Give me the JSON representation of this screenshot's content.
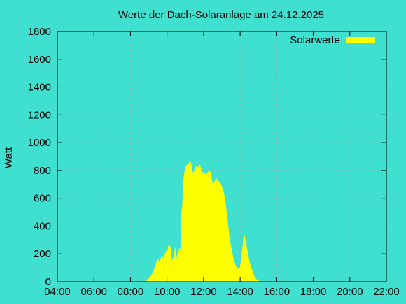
{
  "chart_data": {
    "type": "area",
    "title": "Werte der Dach-Solaranlage am 24.12.2025",
    "xlabel": "",
    "ylabel": "Watt",
    "x_unit": "time of day (hours)",
    "xlim": [
      4,
      22
    ],
    "ylim": [
      0,
      1800
    ],
    "x_ticks": [
      4,
      6,
      8,
      10,
      12,
      14,
      16,
      18,
      20,
      22
    ],
    "x_tick_labels": [
      "04:00",
      "06:00",
      "08:00",
      "10:00",
      "12:00",
      "14:00",
      "16:00",
      "18:00",
      "20:00",
      "22:00"
    ],
    "y_ticks": [
      0,
      200,
      400,
      600,
      800,
      1000,
      1200,
      1400,
      1600,
      1800
    ],
    "y_tick_labels": [
      "0",
      "200",
      "400",
      "600",
      "800",
      "1000",
      "1200",
      "1400",
      "1600",
      "1800"
    ],
    "grid": true,
    "legend_position": "top-right",
    "background_color": "#40e0d0",
    "series": [
      {
        "name": "Solarwerte",
        "color": "#ffff00",
        "points": [
          [
            8.85,
            0
          ],
          [
            8.95,
            15
          ],
          [
            9.1,
            35
          ],
          [
            9.2,
            60
          ],
          [
            9.3,
            90
          ],
          [
            9.4,
            130
          ],
          [
            9.5,
            160
          ],
          [
            9.6,
            140
          ],
          [
            9.7,
            180
          ],
          [
            9.8,
            170
          ],
          [
            9.9,
            200
          ],
          [
            9.95,
            220
          ],
          [
            10.0,
            190
          ],
          [
            10.1,
            270
          ],
          [
            10.2,
            240
          ],
          [
            10.25,
            150
          ],
          [
            10.35,
            170
          ],
          [
            10.45,
            240
          ],
          [
            10.5,
            150
          ],
          [
            10.6,
            210
          ],
          [
            10.7,
            240
          ],
          [
            10.75,
            200
          ],
          [
            10.8,
            500
          ],
          [
            10.85,
            560
          ],
          [
            10.9,
            730
          ],
          [
            11.0,
            820
          ],
          [
            11.1,
            840
          ],
          [
            11.2,
            850
          ],
          [
            11.3,
            860
          ],
          [
            11.4,
            780
          ],
          [
            11.5,
            800
          ],
          [
            11.6,
            830
          ],
          [
            11.7,
            820
          ],
          [
            11.8,
            840
          ],
          [
            11.9,
            780
          ],
          [
            12.0,
            790
          ],
          [
            12.1,
            770
          ],
          [
            12.2,
            780
          ],
          [
            12.3,
            800
          ],
          [
            12.4,
            780
          ],
          [
            12.5,
            690
          ],
          [
            12.6,
            720
          ],
          [
            12.7,
            740
          ],
          [
            12.8,
            720
          ],
          [
            12.9,
            710
          ],
          [
            13.0,
            680
          ],
          [
            13.1,
            640
          ],
          [
            13.2,
            560
          ],
          [
            13.3,
            450
          ],
          [
            13.4,
            330
          ],
          [
            13.5,
            250
          ],
          [
            13.6,
            180
          ],
          [
            13.7,
            130
          ],
          [
            13.8,
            100
          ],
          [
            13.9,
            90
          ],
          [
            14.0,
            100
          ],
          [
            14.1,
            200
          ],
          [
            14.2,
            320
          ],
          [
            14.25,
            330
          ],
          [
            14.3,
            280
          ],
          [
            14.4,
            220
          ],
          [
            14.5,
            140
          ],
          [
            14.6,
            100
          ],
          [
            14.7,
            60
          ],
          [
            14.8,
            30
          ],
          [
            14.9,
            15
          ],
          [
            15.0,
            8
          ],
          [
            15.1,
            0
          ]
        ]
      }
    ]
  }
}
